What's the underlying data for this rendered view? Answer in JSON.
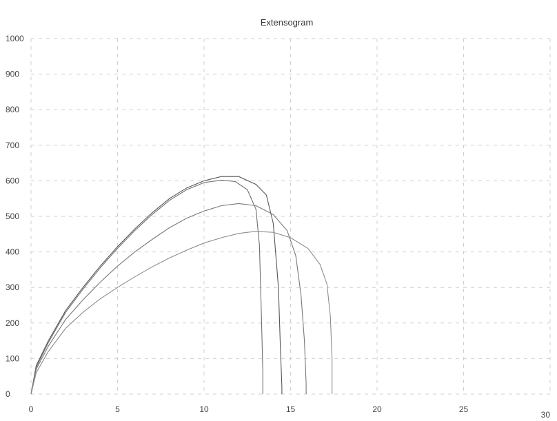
{
  "chart_data": {
    "type": "line",
    "title": "Extensogram",
    "xlabel": "",
    "ylabel": "",
    "xlim": [
      0,
      30
    ],
    "ylim": [
      0,
      1000
    ],
    "xticks": [
      0,
      5,
      10,
      15,
      20,
      25,
      30
    ],
    "xtick_labels": [
      "0",
      "5",
      "10",
      "15",
      "20",
      "25",
      "30"
    ],
    "yticks": [
      0,
      100,
      200,
      300,
      400,
      500,
      600,
      700,
      800,
      900,
      1000
    ],
    "ytick_labels": [
      "0",
      "100",
      "200",
      "300",
      "400",
      "500",
      "600",
      "700",
      "800",
      "900",
      "1000"
    ],
    "grid": true,
    "legend": "none",
    "series": [
      {
        "color": "#555555",
        "x": [
          0,
          0.3,
          1,
          2,
          3,
          4,
          5,
          6,
          7,
          8,
          9,
          10,
          11,
          12,
          13,
          13.6,
          14,
          14.3,
          14.4,
          14.5,
          14.5
        ],
        "y": [
          0,
          80,
          150,
          235,
          300,
          360,
          415,
          465,
          510,
          550,
          580,
          600,
          612,
          612,
          590,
          560,
          480,
          300,
          150,
          20,
          0
        ]
      },
      {
        "color": "#6f6f6f",
        "x": [
          0,
          0.3,
          1,
          2,
          3,
          4,
          5,
          6,
          7,
          8,
          9,
          10,
          11,
          11.8,
          12.5,
          13,
          13.2,
          13.3,
          13.4,
          13.4
        ],
        "y": [
          0,
          75,
          145,
          230,
          295,
          355,
          410,
          460,
          505,
          545,
          575,
          595,
          602,
          598,
          575,
          520,
          420,
          250,
          60,
          0
        ]
      },
      {
        "color": "#777777",
        "x": [
          0,
          0.3,
          1,
          2,
          3,
          4,
          5,
          6,
          7,
          8,
          9,
          10,
          11,
          12,
          13,
          14,
          14.8,
          15.3,
          15.6,
          15.8,
          15.9,
          15.9
        ],
        "y": [
          0,
          70,
          135,
          210,
          265,
          315,
          360,
          400,
          435,
          468,
          495,
          515,
          530,
          536,
          530,
          505,
          460,
          390,
          280,
          150,
          30,
          0
        ]
      },
      {
        "color": "#8c8c8c",
        "x": [
          0,
          0.3,
          1,
          2,
          3,
          4,
          5,
          6,
          7,
          8,
          9,
          10,
          11,
          12,
          13,
          14,
          15,
          16,
          16.7,
          17.1,
          17.3,
          17.4,
          17.4
        ],
        "y": [
          0,
          60,
          120,
          185,
          230,
          268,
          300,
          330,
          358,
          383,
          405,
          425,
          440,
          452,
          458,
          455,
          440,
          410,
          365,
          310,
          220,
          100,
          0
        ]
      }
    ]
  }
}
